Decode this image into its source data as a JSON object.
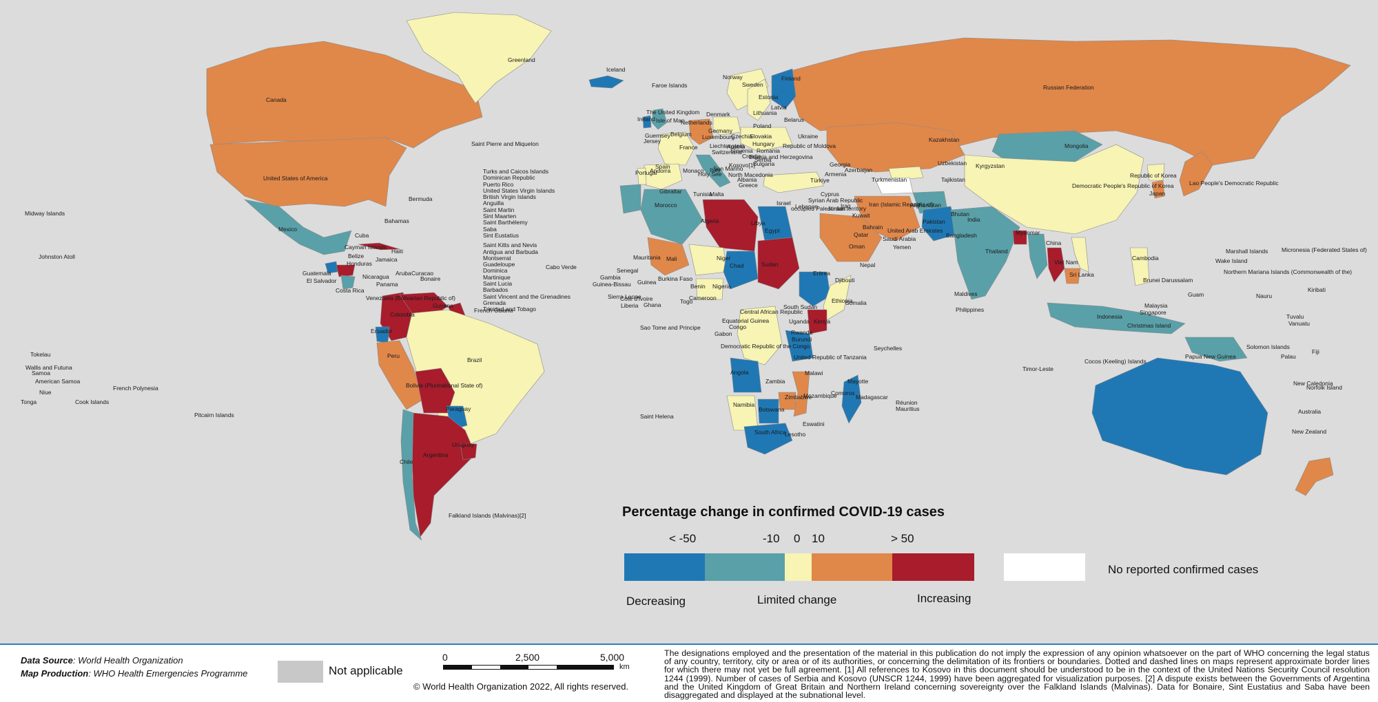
{
  "colors": {
    "background": "#dcdcdc",
    "decreasing": "#1f78b4",
    "decreasing_slight": "#5aa0a8",
    "limited_change": "#f7f4b4",
    "increasing_slight": "#e0874a",
    "increasing": "#a81c2c",
    "no_reported_cases": "#ffffff",
    "not_applicable": "#c8c8c8"
  },
  "legend": {
    "title": "Percentage change in confirmed COVID-19 cases",
    "ticks": [
      "< -50",
      "-10",
      "0",
      "10",
      "> 50"
    ],
    "classes": [
      "decreasing",
      "decreasing_slight",
      "limited_change",
      "increasing_slight",
      "increasing"
    ],
    "decreasing_label": "Decreasing",
    "limited_label": "Limited change",
    "increasing_label": "Increasing",
    "no_cases_label": "No reported confirmed cases"
  },
  "footer": {
    "data_source_label": "Data Source",
    "data_source_value": ": World Health Organization",
    "map_production_label": "Map Production",
    "map_production_value": ": WHO Health Emergencies Programme",
    "not_applicable_label": "Not applicable",
    "scale_ticks": [
      "0",
      "2,500",
      "5,000"
    ],
    "scale_unit": "km",
    "copyright": "© World Health Organization  2022,  All rights reserved.",
    "disclaimer": "The designations employed and the presentation of the material in this publication do not imply the expression of any opinion whatsoever on the part of WHO concerning the legal status of any country, territory, city or area or of its authorities, or concerning the delimitation of its frontiers or boundaries. Dotted and dashed lines on maps represent approximate border lines for which there may not yet be full agreement. [1] All references to Kosovo in this document should be understood to be in the context of the United Nations Security Council resolution 1244 (1999). Number of cases of Serbia and Kosovo (UNSCR 1244, 1999) have been aggregated for visualization purposes. [2] A dispute exists between the Governments of Argentina and the United Kingdom of Great Britain and Northern Ireland concerning sovereignty over the Falkland Islands (Malvinas). Data for Bonaire, Sint Eustatius and Saba have been disaggregated and displayed at the subnational level."
  },
  "regions": [
    {
      "name": "Canada",
      "class": "increasing_slight"
    },
    {
      "name": "United States of America",
      "class": "increasing_slight"
    },
    {
      "name": "Greenland",
      "class": "limited_change"
    },
    {
      "name": "Iceland",
      "class": "decreasing"
    },
    {
      "name": "Mexico",
      "class": "decreasing_slight"
    },
    {
      "name": "Cuba",
      "class": "increasing"
    },
    {
      "name": "Guatemala",
      "class": "decreasing"
    },
    {
      "name": "Honduras",
      "class": "increasing"
    },
    {
      "name": "Nicaragua",
      "class": "decreasing_slight"
    },
    {
      "name": "Colombia",
      "class": "increasing"
    },
    {
      "name": "Venezuela",
      "class": "increasing"
    },
    {
      "name": "Guyana",
      "class": "increasing"
    },
    {
      "name": "Ecuador",
      "class": "decreasing"
    },
    {
      "name": "Peru",
      "class": "increasing_slight"
    },
    {
      "name": "Brazil",
      "class": "limited_change"
    },
    {
      "name": "Bolivia",
      "class": "increasing"
    },
    {
      "name": "Paraguay",
      "class": "decreasing"
    },
    {
      "name": "Argentina",
      "class": "increasing"
    },
    {
      "name": "Chile",
      "class": "decreasing_slight"
    },
    {
      "name": "Uruguay",
      "class": "increasing"
    },
    {
      "name": "Russian Federation",
      "class": "increasing_slight"
    },
    {
      "name": "Finland",
      "class": "decreasing"
    },
    {
      "name": "Norway",
      "class": "limited_change"
    },
    {
      "name": "Sweden",
      "class": "limited_change"
    },
    {
      "name": "United Kingdom",
      "class": "decreasing_slight"
    },
    {
      "name": "Ireland",
      "class": "decreasing"
    },
    {
      "name": "France",
      "class": "limited_change"
    },
    {
      "name": "Spain",
      "class": "limited_change"
    },
    {
      "name": "Portugal",
      "class": "limited_change"
    },
    {
      "name": "Germany",
      "class": "increasing_slight"
    },
    {
      "name": "Poland",
      "class": "limited_change"
    },
    {
      "name": "Ukraine",
      "class": "limited_change"
    },
    {
      "name": "Italy",
      "class": "decreasing_slight"
    },
    {
      "name": "Türkiye",
      "class": "limited_change"
    },
    {
      "name": "Kazakhstan",
      "class": "increasing_slight"
    },
    {
      "name": "Mongolia",
      "class": "decreasing_slight"
    },
    {
      "name": "China",
      "class": "limited_change"
    },
    {
      "name": "Japan",
      "class": "increasing_slight"
    },
    {
      "name": "Republic of Korea",
      "class": "increasing_slight"
    },
    {
      "name": "Democratic People's Republic of Korea",
      "class": "limited_change"
    },
    {
      "name": "Uzbekistan",
      "class": "limited_change"
    },
    {
      "name": "Turkmenistan",
      "class": "no_reported_cases"
    },
    {
      "name": "Afghanistan",
      "class": "decreasing_slight"
    },
    {
      "name": "Pakistan",
      "class": "decreasing"
    },
    {
      "name": "India",
      "class": "decreasing_slight"
    },
    {
      "name": "Iran (Islamic Republic of)",
      "class": "increasing_slight"
    },
    {
      "name": "Saudi Arabia",
      "class": "increasing_slight"
    },
    {
      "name": "Bangladesh",
      "class": "increasing"
    },
    {
      "name": "Myanmar",
      "class": "decreasing_slight"
    },
    {
      "name": "Thailand",
      "class": "increasing"
    },
    {
      "name": "Cambodia",
      "class": "increasing_slight"
    },
    {
      "name": "Viet Nam",
      "class": "limited_change"
    },
    {
      "name": "Philippines",
      "class": "limited_change"
    },
    {
      "name": "Indonesia",
      "class": "decreasing_slight"
    },
    {
      "name": "Papua New Guinea",
      "class": "decreasing_slight"
    },
    {
      "name": "Australia",
      "class": "decreasing"
    },
    {
      "name": "New Zealand",
      "class": "increasing_slight"
    },
    {
      "name": "Algeria",
      "class": "decreasing_slight"
    },
    {
      "name": "Morocco",
      "class": "decreasing_slight"
    },
    {
      "name": "Libya",
      "class": "increasing"
    },
    {
      "name": "Egypt",
      "class": "decreasing"
    },
    {
      "name": "Mali",
      "class": "increasing_slight"
    },
    {
      "name": "Niger",
      "class": "limited_change"
    },
    {
      "name": "Chad",
      "class": "decreasing"
    },
    {
      "name": "Sudan",
      "class": "increasing"
    },
    {
      "name": "Ethiopia",
      "class": "decreasing"
    },
    {
      "name": "Somalia",
      "class": "limited_change"
    },
    {
      "name": "Nigeria",
      "class": "limited_change"
    },
    {
      "name": "Democratic Republic of the Congo",
      "class": "limited_change"
    },
    {
      "name": "Kenya",
      "class": "increasing"
    },
    {
      "name": "United Republic of Tanzania",
      "class": "decreasing"
    },
    {
      "name": "Angola",
      "class": "decreasing"
    },
    {
      "name": "Namibia",
      "class": "limited_change"
    },
    {
      "name": "Botswana",
      "class": "decreasing"
    },
    {
      "name": "Zimbabwe",
      "class": "increasing_slight"
    },
    {
      "name": "Mozambique",
      "class": "increasing_slight"
    },
    {
      "name": "Madagascar",
      "class": "decreasing"
    },
    {
      "name": "South Africa",
      "class": "decreasing"
    }
  ],
  "labels": [
    {
      "text": "Greenland"
    },
    {
      "text": "Iceland"
    },
    {
      "text": "Faroe Islands"
    },
    {
      "text": "Canada"
    },
    {
      "text": "Saint Pierre and Miquelon"
    },
    {
      "text": "United States of America"
    },
    {
      "text": "Bermuda"
    },
    {
      "text": "Midway Islands"
    },
    {
      "text": "Bahamas"
    },
    {
      "text": "Mexico"
    },
    {
      "text": "Cuba"
    },
    {
      "text": "Cayman Islands"
    },
    {
      "text": "Haiti"
    },
    {
      "text": "Belize"
    },
    {
      "text": "Jamaica"
    },
    {
      "text": "Honduras"
    },
    {
      "text": "Johnston Atoll"
    },
    {
      "text": "Guatemala"
    },
    {
      "text": "Aruba"
    },
    {
      "text": "Curacao"
    },
    {
      "text": "Bonaire"
    },
    {
      "text": "El Salvador"
    },
    {
      "text": "Nicaragua"
    },
    {
      "text": "Panama"
    },
    {
      "text": "Costa Rica"
    },
    {
      "text": "Venezuela (Bolivarian Republic of)"
    },
    {
      "text": "Guyana"
    },
    {
      "text": "French Guiana"
    },
    {
      "text": "Colombia"
    },
    {
      "text": "Ecuador"
    },
    {
      "text": "Peru"
    },
    {
      "text": "Brazil"
    },
    {
      "text": "Bolivia (Plurinational State of)"
    },
    {
      "text": "Paraguay"
    },
    {
      "text": "Chile"
    },
    {
      "text": "Argentina"
    },
    {
      "text": "Uruguay"
    },
    {
      "text": "Falkland Islands (Malvinas)[2]"
    },
    {
      "text": "Tokelau"
    },
    {
      "text": "Wallis and Futuna"
    },
    {
      "text": "Samoa"
    },
    {
      "text": "American Samoa"
    },
    {
      "text": "Niue"
    },
    {
      "text": "Tonga"
    },
    {
      "text": "Cook Islands"
    },
    {
      "text": "French Polynesia"
    },
    {
      "text": "Pitcairn Islands"
    },
    {
      "text": "Cabo Verde"
    },
    {
      "text": "Saint Helena"
    },
    {
      "text": "Sao Tome and Principe"
    },
    {
      "text": "Norway"
    },
    {
      "text": "Sweden"
    },
    {
      "text": "Finland"
    },
    {
      "text": "Estonia"
    },
    {
      "text": "Latvia"
    },
    {
      "text": "Lithuania"
    },
    {
      "text": "The United Kingdom"
    },
    {
      "text": "Ireland"
    },
    {
      "text": "Isle of Man"
    },
    {
      "text": "Denmark"
    },
    {
      "text": "Netherlands"
    },
    {
      "text": "Belarus"
    },
    {
      "text": "Poland"
    },
    {
      "text": "Guernsey"
    },
    {
      "text": "Jersey"
    },
    {
      "text": "Belgium"
    },
    {
      "text": "Germany"
    },
    {
      "text": "Luxembourg"
    },
    {
      "text": "Czechia"
    },
    {
      "text": "Slovakia"
    },
    {
      "text": "Ukraine"
    },
    {
      "text": "France"
    },
    {
      "text": "Liechtenstein"
    },
    {
      "text": "Austria"
    },
    {
      "text": "Hungary"
    },
    {
      "text": "Republic of Moldova"
    },
    {
      "text": "Switzerland"
    },
    {
      "text": "Slovenia"
    },
    {
      "text": "Romania"
    },
    {
      "text": "Croatia"
    },
    {
      "text": "Bosnia and Herzegovina"
    },
    {
      "text": "Serbia"
    },
    {
      "text": "Bulgaria"
    },
    {
      "text": "Kosovo[1]"
    },
    {
      "text": "Spain"
    },
    {
      "text": "Andorra"
    },
    {
      "text": "Monaco"
    },
    {
      "text": "San Marino"
    },
    {
      "text": "Portugal"
    },
    {
      "text": "Italy"
    },
    {
      "text": "Holy See"
    },
    {
      "text": "North Macedonia"
    },
    {
      "text": "Albania"
    },
    {
      "text": "Greece"
    },
    {
      "text": "Gibraltar"
    },
    {
      "text": "Malta"
    },
    {
      "text": "Tunisia"
    },
    {
      "text": "Morocco"
    },
    {
      "text": "Algeria"
    },
    {
      "text": "Libya"
    },
    {
      "text": "Egypt"
    },
    {
      "text": "Mauritania"
    },
    {
      "text": "Mali"
    },
    {
      "text": "Niger"
    },
    {
      "text": "Chad"
    },
    {
      "text": "Sudan"
    },
    {
      "text": "Eritrea"
    },
    {
      "text": "Senegal"
    },
    {
      "text": "Gambia"
    },
    {
      "text": "Guinea-Bissau"
    },
    {
      "text": "Guinea"
    },
    {
      "text": "Burkina Faso"
    },
    {
      "text": "Benin"
    },
    {
      "text": "Nigeria"
    },
    {
      "text": "Djibouti"
    },
    {
      "text": "Sierra Leone"
    },
    {
      "text": "Liberia"
    },
    {
      "text": "Côte d'Ivoire"
    },
    {
      "text": "Ghana"
    },
    {
      "text": "Togo"
    },
    {
      "text": "Cameroon"
    },
    {
      "text": "Central African Republic"
    },
    {
      "text": "South Sudan"
    },
    {
      "text": "Ethiopia"
    },
    {
      "text": "Somalia"
    },
    {
      "text": "Equatorial Guinea"
    },
    {
      "text": "Uganda"
    },
    {
      "text": "Kenya"
    },
    {
      "text": "Gabon"
    },
    {
      "text": "Congo"
    },
    {
      "text": "Rwanda"
    },
    {
      "text": "Burundi"
    },
    {
      "text": "Democratic Republic of the Congo"
    },
    {
      "text": "United Republic of Tanzania"
    },
    {
      "text": "Seychelles"
    },
    {
      "text": "Angola"
    },
    {
      "text": "Malawi"
    },
    {
      "text": "Comoros"
    },
    {
      "text": "Mayotte"
    },
    {
      "text": "Zambia"
    },
    {
      "text": "Namibia"
    },
    {
      "text": "Zimbabwe"
    },
    {
      "text": "Mozambique"
    },
    {
      "text": "Madagascar"
    },
    {
      "text": "Réunion"
    },
    {
      "text": "Mauritius"
    },
    {
      "text": "Botswana"
    },
    {
      "text": "Eswatini"
    },
    {
      "text": "South Africa"
    },
    {
      "text": "Lesotho"
    },
    {
      "text": "Russian Federation"
    },
    {
      "text": "Kazakhstan"
    },
    {
      "text": "Mongolia"
    },
    {
      "text": "Georgia"
    },
    {
      "text": "Armenia"
    },
    {
      "text": "Azerbaijan"
    },
    {
      "text": "Uzbekistan"
    },
    {
      "text": "Kyrgyzstan"
    },
    {
      "text": "Türkiye"
    },
    {
      "text": "Turkmenistan"
    },
    {
      "text": "Tajikistan"
    },
    {
      "text": "Cyprus"
    },
    {
      "text": "Syrian Arab Republic"
    },
    {
      "text": "Lebanon"
    },
    {
      "text": "Israel"
    },
    {
      "text": "occupied Palestinian territory"
    },
    {
      "text": "Jordan"
    },
    {
      "text": "Iraq"
    },
    {
      "text": "Iran (Islamic Republic of)"
    },
    {
      "text": "Afghanistan"
    },
    {
      "text": "Pakistan"
    },
    {
      "text": "Kuwait"
    },
    {
      "text": "Bahrain"
    },
    {
      "text": "Qatar"
    },
    {
      "text": "United Arab Emirates"
    },
    {
      "text": "Saudi Arabia"
    },
    {
      "text": "Oman"
    },
    {
      "text": "Yemen"
    },
    {
      "text": "Nepal"
    },
    {
      "text": "Bhutan"
    },
    {
      "text": "India"
    },
    {
      "text": "Bangladesh"
    },
    {
      "text": "Myanmar"
    },
    {
      "text": "China"
    },
    {
      "text": "Democratic People's Republic of Korea"
    },
    {
      "text": "Republic of Korea"
    },
    {
      "text": "Japan"
    },
    {
      "text": "Lao People's Democratic Republic"
    },
    {
      "text": "Thailand"
    },
    {
      "text": "Viet Nam"
    },
    {
      "text": "Cambodia"
    },
    {
      "text": "Sri Lanka"
    },
    {
      "text": "Maldives"
    },
    {
      "text": "Philippines"
    },
    {
      "text": "Brunei Darussalam"
    },
    {
      "text": "Malaysia"
    },
    {
      "text": "Singapore"
    },
    {
      "text": "Indonesia"
    },
    {
      "text": "Christmas Island"
    },
    {
      "text": "Cocos (Keeling) Islands"
    },
    {
      "text": "Timor-Leste"
    },
    {
      "text": "Papua New Guinea"
    },
    {
      "text": "Solomon Islands"
    },
    {
      "text": "Palau"
    },
    {
      "text": "Guam"
    },
    {
      "text": "Northern Mariana Islands (Commonwealth of the)"
    },
    {
      "text": "Wake Island"
    },
    {
      "text": "Marshall Islands"
    },
    {
      "text": "Micronesia (Federated States of)"
    },
    {
      "text": "Kiribati"
    },
    {
      "text": "Nauru"
    },
    {
      "text": "Tuvalu"
    },
    {
      "text": "Vanuatu"
    },
    {
      "text": "Fiji"
    },
    {
      "text": "New Caledonia"
    },
    {
      "text": "Norfolk Island"
    },
    {
      "text": "Australia"
    },
    {
      "text": "New Zealand"
    }
  ],
  "caribbean_list": [
    "Turks and Caicos Islands",
    "Dominican Republic",
    "Puerto Rico",
    "United States Virgin Islands",
    "British Virgin Islands",
    "Anguilla",
    "Saint Martin",
    "Sint Maarten",
    "Saint Barthélemy",
    "Saba",
    "Sint Eustatius",
    "Saint Kitts and Nevis",
    "Antigua and Barbuda",
    "Montserrat",
    "Guadeloupe",
    "Dominica",
    "Martinique",
    "Saint Lucia",
    "Barbados",
    "Saint Vincent and the Grenadines",
    "Grenada",
    "Trinidad and Tobago"
  ]
}
